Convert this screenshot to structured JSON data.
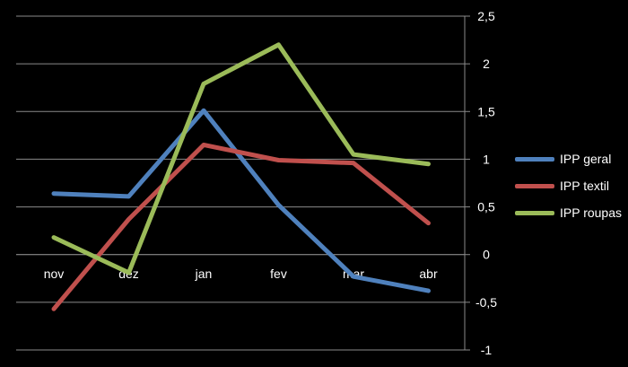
{
  "chart_data": {
    "type": "line",
    "categories": [
      "nov",
      "dez",
      "jan",
      "fev",
      "mar",
      "abr"
    ],
    "series": [
      {
        "name": "IPP geral",
        "color": "#4f81bd",
        "values": [
          0.64,
          0.61,
          1.51,
          0.52,
          -0.23,
          -0.38
        ]
      },
      {
        "name": "IPP textil",
        "color": "#c0504d",
        "values": [
          -0.57,
          0.37,
          1.15,
          0.99,
          0.96,
          0.33
        ]
      },
      {
        "name": "IPP roupas",
        "color": "#9bbb59",
        "values": [
          0.18,
          -0.19,
          1.79,
          2.2,
          1.05,
          0.95
        ]
      }
    ],
    "y_ticks": [
      "2,5",
      "2",
      "1,5",
      "1",
      "0,5",
      "0",
      "-0,5",
      "-1"
    ],
    "ylim": [
      -1,
      2.5
    ],
    "y_axis_position": "right",
    "grid": true,
    "legend_position": "right",
    "background": "#000000",
    "text_color": "#ffffff"
  }
}
